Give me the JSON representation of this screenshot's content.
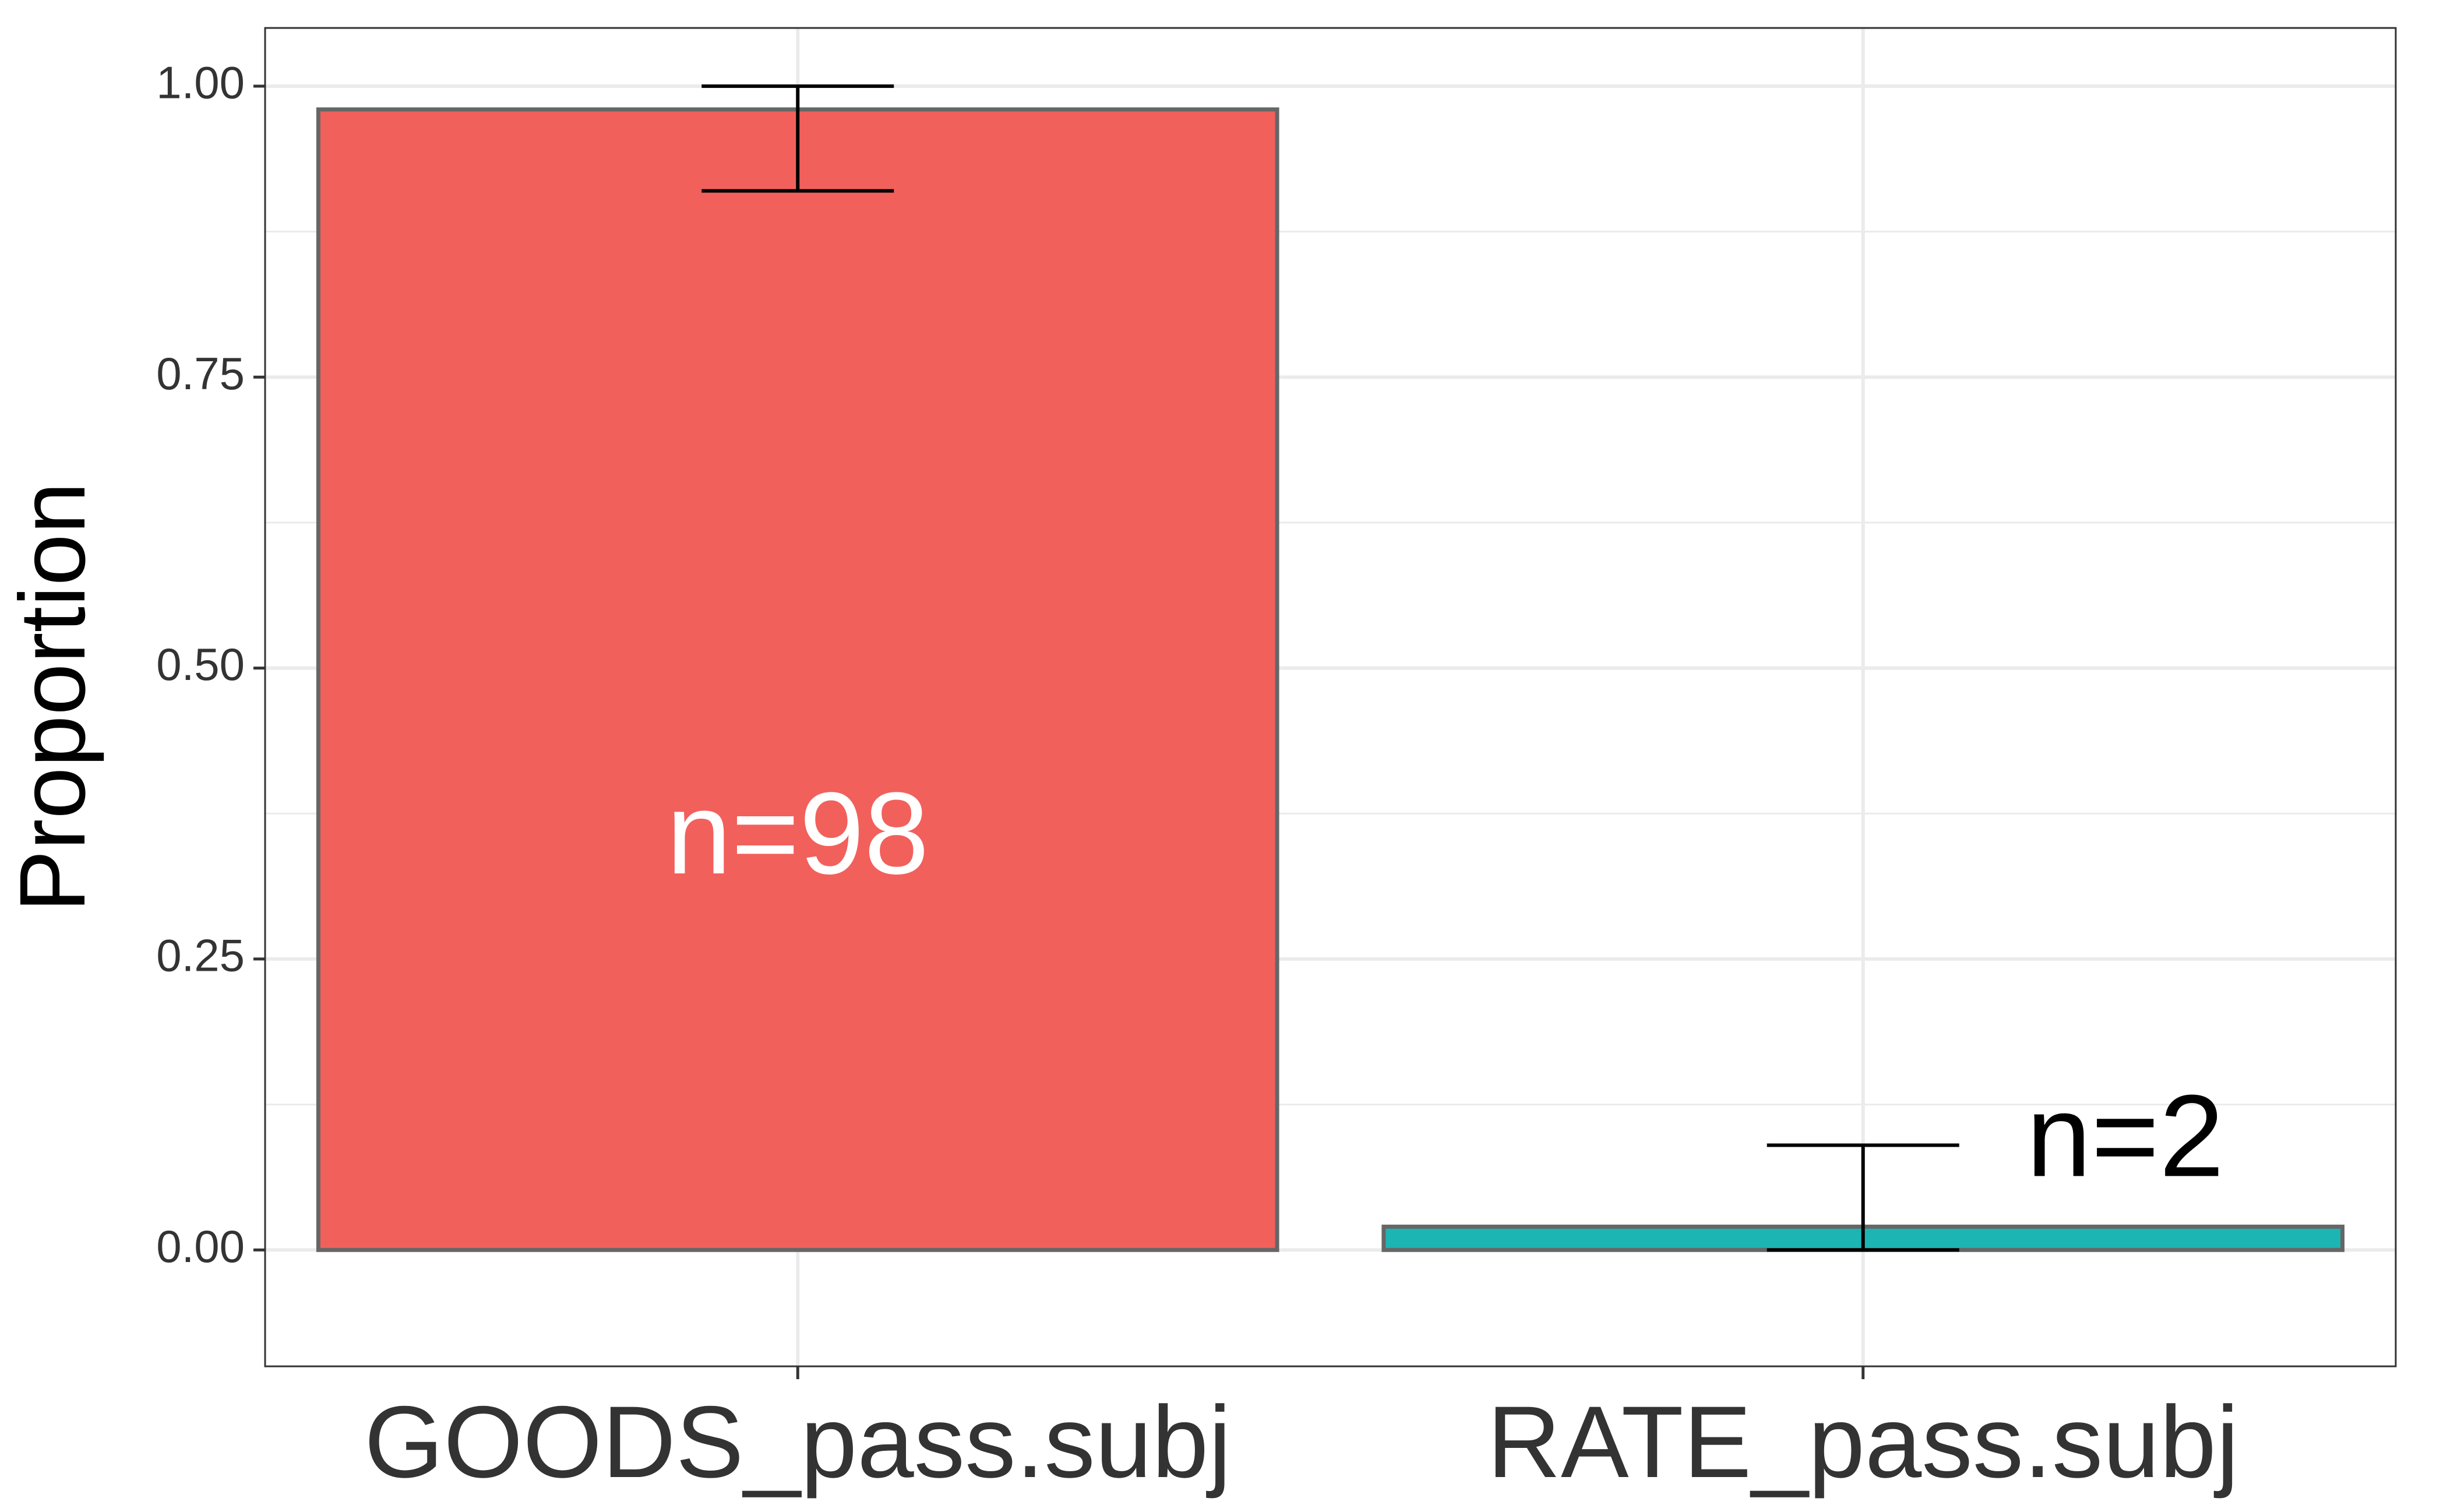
{
  "chart_data": {
    "type": "bar",
    "title": "",
    "xlabel": "",
    "ylabel": "Proportion",
    "ylim": [
      -0.1,
      1.05
    ],
    "yticks": [
      0.0,
      0.25,
      0.5,
      0.75,
      1.0
    ],
    "ytick_labels": [
      "0.00",
      "0.25",
      "0.50",
      "0.75",
      "1.00"
    ],
    "categories": [
      "GOODS_pass.subj",
      "RATE_pass.subj"
    ],
    "values": [
      0.98,
      0.02
    ],
    "error_bars": [
      {
        "lower": 0.91,
        "upper": 1.0
      },
      {
        "lower": 0.0,
        "upper": 0.09
      }
    ],
    "bar_labels": [
      "n=98",
      "n=2"
    ],
    "colors": [
      "#F2605C",
      "#1CB5B3"
    ],
    "bar_outline_color": "#666666",
    "label_colors": [
      "#ffffff",
      "#000000"
    ],
    "grid": true,
    "legend": "none"
  }
}
